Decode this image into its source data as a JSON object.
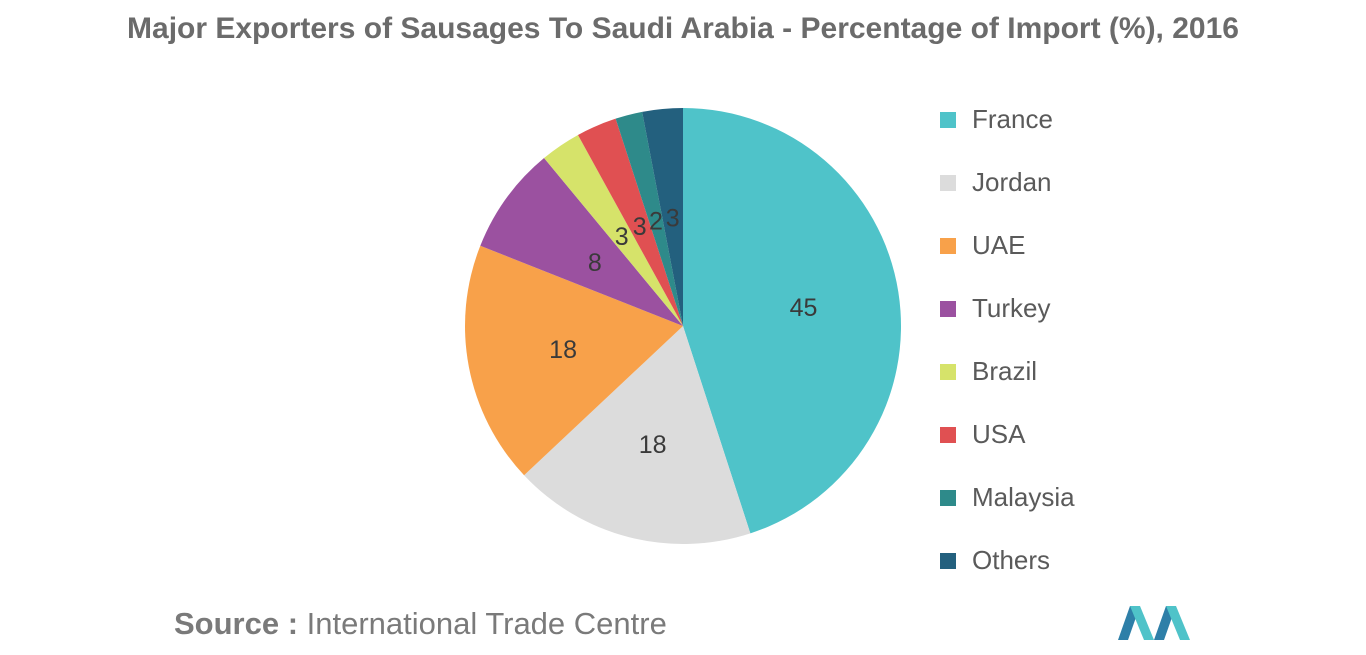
{
  "title": "Major Exporters of Sausages To Saudi Arabia - Percentage of Import (%), 2016",
  "source": {
    "label": "Source :",
    "text": "International Trade Centre"
  },
  "chart_data": {
    "type": "pie",
    "title": "Major Exporters of Sausages To Saudi Arabia - Percentage of Import (%), 2016",
    "legend_position": "right",
    "slices": [
      {
        "label": "France",
        "value": 45,
        "color": "#4fc3c9"
      },
      {
        "label": "Jordan",
        "value": 18,
        "color": "#dcdcdc"
      },
      {
        "label": "UAE",
        "value": 18,
        "color": "#f8a14a"
      },
      {
        "label": "Turkey",
        "value": 8,
        "color": "#9b51a0"
      },
      {
        "label": "Brazil",
        "value": 3,
        "color": "#d6e36a"
      },
      {
        "label": "USA",
        "value": 3,
        "color": "#e05052"
      },
      {
        "label": "Malaysia",
        "value": 2,
        "color": "#2e8a8a"
      },
      {
        "label": "Others",
        "value": 3,
        "color": "#23607e"
      }
    ]
  }
}
